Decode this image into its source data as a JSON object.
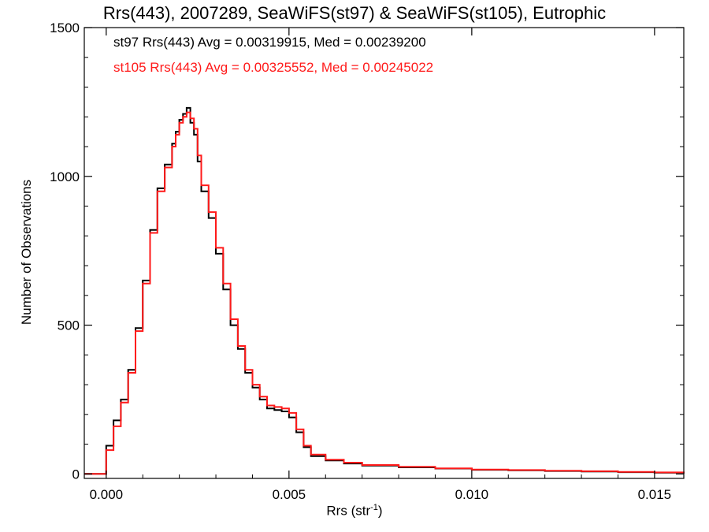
{
  "colors": {
    "series1": "#000000",
    "series2": "#ff1a1a",
    "axis": "#000000",
    "background": "#ffffff"
  },
  "chart_data": {
    "type": "line",
    "style": "step histogram",
    "title": "Rrs(443), 2007289, SeaWiFS(st97) & SeaWiFS(st105), Eutrophic",
    "xlabel_main": "Rrs (str",
    "xlabel_sup": "-1",
    "xlabel_end": ")",
    "ylabel": "Number of Observations",
    "xlim": [
      -0.0006,
      0.0158
    ],
    "ylim": [
      -15,
      1500
    ],
    "xticks": [
      0.0,
      0.005,
      0.01,
      0.015
    ],
    "xtick_labels": [
      "0.000",
      "0.005",
      "0.010",
      "0.015"
    ],
    "yticks": [
      0,
      500,
      1000,
      1500
    ],
    "ytick_labels": [
      "0",
      "500",
      "1000",
      "1500"
    ],
    "grid": false,
    "series": [
      {
        "name": "st97",
        "stats_text": "st97 Rrs(443) Avg = 0.00319915, Med = 0.00239200",
        "color": "#000000",
        "x": [
          -0.0006,
          -0.0001,
          0.0,
          0.0002,
          0.0004,
          0.0006,
          0.0008,
          0.001,
          0.0012,
          0.0014,
          0.0016,
          0.0018,
          0.0019,
          0.002,
          0.0021,
          0.0022,
          0.0023,
          0.0024,
          0.0025,
          0.0026,
          0.0028,
          0.003,
          0.0032,
          0.0034,
          0.0036,
          0.0038,
          0.004,
          0.0042,
          0.0044,
          0.0046,
          0.0048,
          0.005,
          0.0052,
          0.0054,
          0.0056,
          0.006,
          0.0065,
          0.007,
          0.008,
          0.009,
          0.01,
          0.011,
          0.012,
          0.013,
          0.014,
          0.015,
          0.0158
        ],
        "values": [
          0,
          0,
          95,
          180,
          250,
          350,
          490,
          650,
          820,
          960,
          1040,
          1110,
          1150,
          1190,
          1210,
          1230,
          1180,
          1140,
          1050,
          950,
          860,
          740,
          620,
          500,
          420,
          340,
          290,
          250,
          220,
          215,
          210,
          190,
          140,
          90,
          60,
          45,
          35,
          28,
          22,
          18,
          14,
          12,
          10,
          8,
          6,
          4,
          2
        ]
      },
      {
        "name": "st105",
        "stats_text": "st105 Rrs(443) Avg = 0.00325552, Med = 0.00245022",
        "color": "#ff1a1a",
        "x": [
          -0.0006,
          -0.0001,
          0.0,
          0.0002,
          0.0004,
          0.0006,
          0.0008,
          0.001,
          0.0012,
          0.0014,
          0.0016,
          0.0018,
          0.0019,
          0.002,
          0.0021,
          0.0022,
          0.0023,
          0.0024,
          0.0025,
          0.0026,
          0.0028,
          0.003,
          0.0032,
          0.0034,
          0.0036,
          0.0038,
          0.004,
          0.0042,
          0.0044,
          0.0046,
          0.0048,
          0.005,
          0.0052,
          0.0054,
          0.0056,
          0.006,
          0.0065,
          0.007,
          0.008,
          0.009,
          0.01,
          0.011,
          0.012,
          0.013,
          0.014,
          0.015,
          0.0158
        ],
        "values": [
          0,
          0,
          80,
          160,
          240,
          340,
          480,
          640,
          810,
          950,
          1030,
          1100,
          1140,
          1180,
          1200,
          1215,
          1195,
          1160,
          1070,
          970,
          880,
          760,
          640,
          520,
          430,
          350,
          300,
          260,
          230,
          225,
          220,
          205,
          150,
          95,
          65,
          48,
          38,
          30,
          24,
          19,
          15,
          13,
          11,
          9,
          7,
          5,
          3
        ]
      }
    ]
  }
}
